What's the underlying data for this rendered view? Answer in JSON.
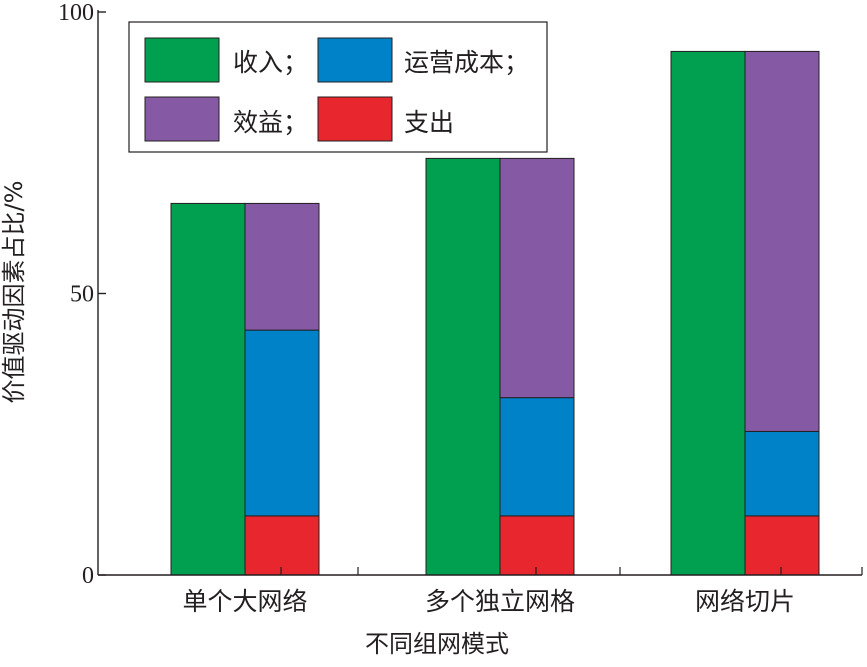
{
  "chart_data": {
    "type": "bar",
    "stacked": true,
    "title": "",
    "xlabel": "不同组网模式",
    "ylabel": "价值驱动因素占比/%",
    "ylim": [
      0,
      100
    ],
    "yticks": [
      0,
      50,
      100
    ],
    "categories": [
      "单个大网络",
      "多个独立网格",
      "网络切片"
    ],
    "left_bar": {
      "name": "收入；",
      "color": "#00a050",
      "values": [
        66,
        74,
        93
      ]
    },
    "right_bar_stack": [
      {
        "name": "支出",
        "color": "#e8262d",
        "values": [
          10.5,
          10.5,
          10.5
        ]
      },
      {
        "name": "运营成本；",
        "color": "#0082c8",
        "values": [
          33,
          21,
          15
        ]
      },
      {
        "name": "效益；",
        "color": "#8659a4",
        "values": [
          22.5,
          42.5,
          67.5
        ]
      }
    ],
    "legend": {
      "position": "top-left",
      "entries": [
        {
          "label": "收入；",
          "color": "#00a050"
        },
        {
          "label": "运营成本；",
          "color": "#0082c8"
        },
        {
          "label": "效益；",
          "color": "#8659a4"
        },
        {
          "label": "支出",
          "color": "#e8262d"
        }
      ]
    },
    "grid": false
  }
}
